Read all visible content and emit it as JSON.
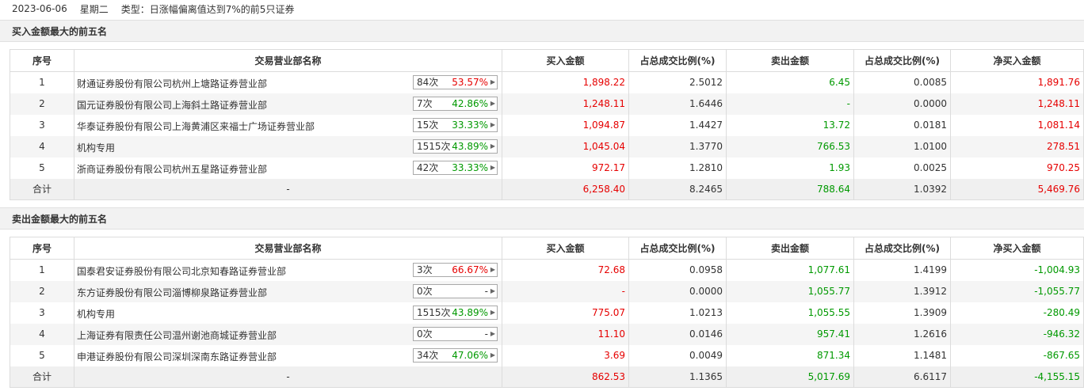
{
  "header": {
    "date": "2023-06-06",
    "weekday": "星期二",
    "type_text": "类型：日涨幅偏离值达到7%的前5只证券"
  },
  "columns": [
    "序号",
    "交易营业部名称",
    "买入金额",
    "占总成交比例(%)",
    "卖出金额",
    "占总成交比例(%)",
    "净买入金额"
  ],
  "colors": {
    "up": "#e60000",
    "down": "#009900"
  },
  "buy_section": {
    "title": "买入金额最大的前五名",
    "rows": [
      {
        "rank": "1",
        "name": "财通证券股份有限公司杭州上塘路证券营业部",
        "times": "84次",
        "rate": "53.57%",
        "rate_color": "red",
        "buy": "1,898.22",
        "buy_pct": "2.5012",
        "sell": "6.45",
        "sell_pct": "0.0085",
        "net": "1,891.76",
        "net_color": "red"
      },
      {
        "rank": "2",
        "name": "国元证券股份有限公司上海斜土路证券营业部",
        "times": "7次",
        "rate": "42.86%",
        "rate_color": "green",
        "buy": "1,248.11",
        "buy_pct": "1.6446",
        "sell": "-",
        "sell_pct": "0.0000",
        "net": "1,248.11",
        "net_color": "red"
      },
      {
        "rank": "3",
        "name": "华泰证券股份有限公司上海黄浦区来福士广场证券营业部",
        "times": "15次",
        "rate": "33.33%",
        "rate_color": "green",
        "buy": "1,094.87",
        "buy_pct": "1.4427",
        "sell": "13.72",
        "sell_pct": "0.0181",
        "net": "1,081.14",
        "net_color": "red"
      },
      {
        "rank": "4",
        "name": "机构专用",
        "times": "1515次",
        "rate": "43.89%",
        "rate_color": "green",
        "buy": "1,045.04",
        "buy_pct": "1.3770",
        "sell": "766.53",
        "sell_pct": "1.0100",
        "net": "278.51",
        "net_color": "red"
      },
      {
        "rank": "5",
        "name": "浙商证券股份有限公司杭州五星路证券营业部",
        "times": "42次",
        "rate": "33.33%",
        "rate_color": "green",
        "buy": "972.17",
        "buy_pct": "1.2810",
        "sell": "1.93",
        "sell_pct": "0.0025",
        "net": "970.25",
        "net_color": "red"
      }
    ],
    "total": {
      "label": "合计",
      "name": "-",
      "buy": "6,258.40",
      "buy_pct": "8.2465",
      "sell": "788.64",
      "sell_pct": "1.0392",
      "net": "5,469.76",
      "net_color": "red"
    }
  },
  "sell_section": {
    "title": "卖出金额最大的前五名",
    "rows": [
      {
        "rank": "1",
        "name": "国泰君安证券股份有限公司北京知春路证券营业部",
        "times": "3次",
        "rate": "66.67%",
        "rate_color": "red",
        "buy": "72.68",
        "buy_pct": "0.0958",
        "sell": "1,077.61",
        "sell_pct": "1.4199",
        "net": "-1,004.93",
        "net_color": "green"
      },
      {
        "rank": "2",
        "name": "东方证券股份有限公司淄博柳泉路证券营业部",
        "times": "0次",
        "rate": "-",
        "rate_color": "plain",
        "buy": "-",
        "buy_pct": "0.0000",
        "sell": "1,055.77",
        "sell_pct": "1.3912",
        "net": "-1,055.77",
        "net_color": "green"
      },
      {
        "rank": "3",
        "name": "机构专用",
        "times": "1515次",
        "rate": "43.89%",
        "rate_color": "green",
        "buy": "775.07",
        "buy_pct": "1.0213",
        "sell": "1,055.55",
        "sell_pct": "1.3909",
        "net": "-280.49",
        "net_color": "green"
      },
      {
        "rank": "4",
        "name": "上海证券有限责任公司温州谢池商城证券营业部",
        "times": "0次",
        "rate": "-",
        "rate_color": "plain",
        "buy": "11.10",
        "buy_pct": "0.0146",
        "sell": "957.41",
        "sell_pct": "1.2616",
        "net": "-946.32",
        "net_color": "green"
      },
      {
        "rank": "5",
        "name": "申港证券股份有限公司深圳深南东路证券营业部",
        "times": "34次",
        "rate": "47.06%",
        "rate_color": "green",
        "buy": "3.69",
        "buy_pct": "0.0049",
        "sell": "871.34",
        "sell_pct": "1.1481",
        "net": "-867.65",
        "net_color": "green"
      }
    ],
    "total": {
      "label": "合计",
      "name": "-",
      "buy": "862.53",
      "buy_pct": "1.1365",
      "sell": "5,017.69",
      "sell_pct": "6.6117",
      "net": "-4,155.15",
      "net_color": "green"
    }
  }
}
